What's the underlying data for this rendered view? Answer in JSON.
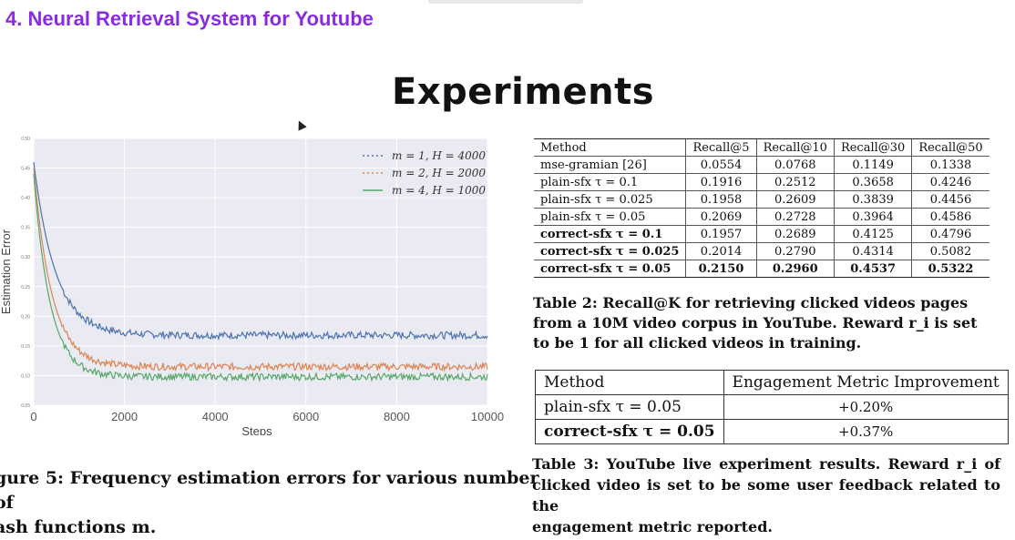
{
  "header": {
    "section_title": "4. Neural Retrieval System for Youtube",
    "slide_title": "Experiments"
  },
  "figure": {
    "caption_line1": "gure 5: Frequency estimation errors for various number of",
    "caption_line2": "ash functions m."
  },
  "chart_data": {
    "type": "line",
    "xlabel": "Steps",
    "ylabel": "Estimation Error",
    "xlim": [
      0,
      10000
    ],
    "ylim": [
      0.05,
      0.5
    ],
    "x_ticks": [
      "0",
      "2000",
      "4000",
      "6000",
      "8000",
      "10000"
    ],
    "y_ticks": [
      "0.50",
      "0.45",
      "0.40",
      "0.35",
      "0.30",
      "0.25",
      "0.20",
      "0.15",
      "0.10",
      "0.05"
    ],
    "grid": true,
    "legend_position": "top-right",
    "series": [
      {
        "name": "m = 1, H = 4000",
        "color": "#4c72b0",
        "start": 0.46,
        "plateau": 0.168,
        "decay": 120
      },
      {
        "name": "m = 2, H = 2000",
        "color": "#dd8452",
        "start": 0.45,
        "plateau": 0.115,
        "decay": 100
      },
      {
        "name": "m = 4, H = 1000",
        "color": "#55a868",
        "start": 0.44,
        "plateau": 0.098,
        "decay": 90
      }
    ]
  },
  "table2": {
    "headers": [
      "Method",
      "Recall@5",
      "Recall@10",
      "Recall@30",
      "Recall@50"
    ],
    "rows": [
      {
        "method": "mse-gramian [26]",
        "values": [
          "0.0554",
          "0.0768",
          "0.1149",
          "0.1338"
        ]
      },
      {
        "method": "plain-sfx τ = 0.1",
        "values": [
          "0.1916",
          "0.2512",
          "0.3658",
          "0.4246"
        ]
      },
      {
        "method": "plain-sfx τ = 0.025",
        "values": [
          "0.1958",
          "0.2609",
          "0.3839",
          "0.4456"
        ]
      },
      {
        "method": "plain-sfx τ = 0.05",
        "values": [
          "0.2069",
          "0.2728",
          "0.3964",
          "0.4586"
        ]
      },
      {
        "method": "correct-sfx τ = 0.1",
        "values": [
          "0.1957",
          "0.2689",
          "0.4125",
          "0.4796"
        ]
      },
      {
        "method": "correct-sfx τ = 0.025",
        "values": [
          "0.2014",
          "0.2790",
          "0.4314",
          "0.5082"
        ]
      },
      {
        "method": "correct-sfx τ = 0.05",
        "values": [
          "0.2150",
          "0.2960",
          "0.4537",
          "0.5322"
        ]
      }
    ],
    "caption": "Table 2: Recall@K for retrieving clicked videos pages from a 10M video corpus in YouTube. Reward r_i is set to be 1 for all clicked videos in training."
  },
  "table3": {
    "headers": [
      "Method",
      "Engagement Metric Improvement"
    ],
    "rows": [
      {
        "method": "plain-sfx τ = 0.05",
        "value": "+0.20%"
      },
      {
        "method": "correct-sfx τ = 0.05",
        "value": "+0.37%"
      }
    ],
    "caption_main": "Table 3: YouTube live experiment results. Reward r_i of clicked video is set to be some user feedback related to the",
    "caption_last": "engagement metric reported."
  }
}
